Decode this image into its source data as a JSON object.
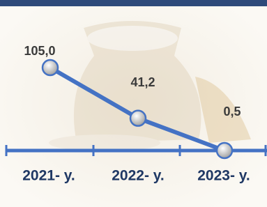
{
  "chart_data": {
    "type": "line",
    "categories": [
      "2021- y.",
      "2022- y.",
      "2023- y."
    ],
    "values": [
      105.0,
      41.2,
      0.5
    ],
    "value_labels": [
      "105,0",
      "41,2",
      "0,5"
    ],
    "color": "#4472c4"
  }
}
